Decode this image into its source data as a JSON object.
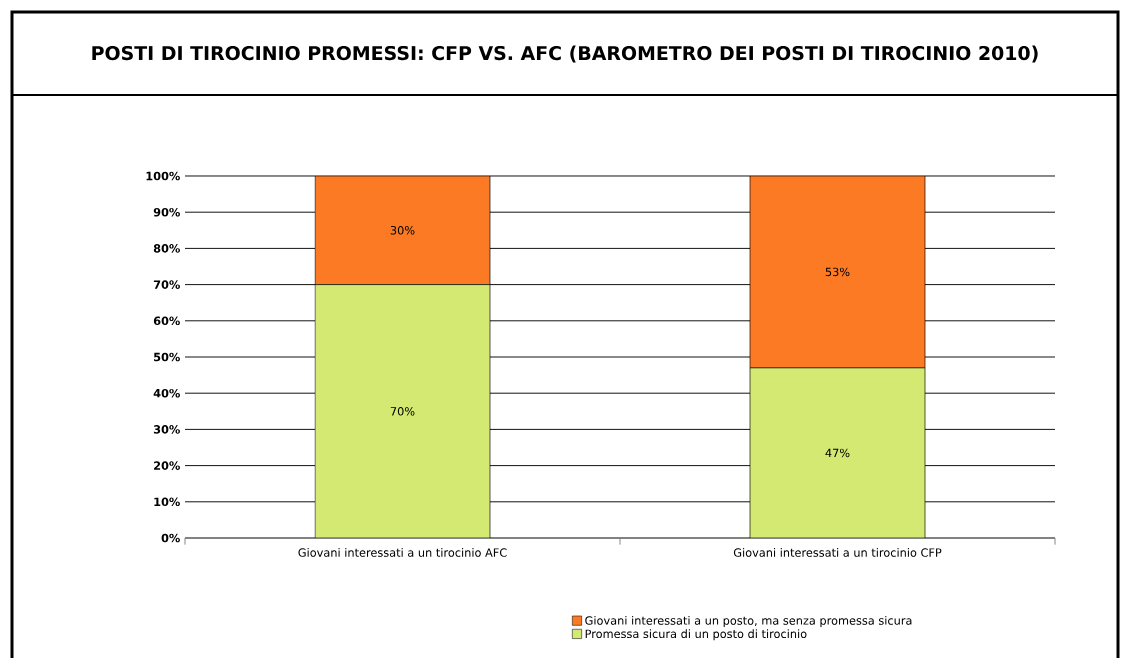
{
  "chart_data": {
    "type": "bar",
    "stacked": true,
    "title": "POSTI DI TIROCINIO PROMESSI: CFP VS. AFC (BAROMETRO DEI POSTI DI TIROCINIO 2010)",
    "categories": [
      "Giovani interessati a un tirocinio AFC",
      "Giovani interessati a un tirocinio CFP"
    ],
    "series": [
      {
        "name": "Promessa sicura di un posto di tirocinio",
        "color": "#d4e972",
        "values": [
          70,
          47
        ],
        "value_labels": [
          "70%",
          "47%"
        ]
      },
      {
        "name": "Giovani interessati a un posto, ma senza promessa sicura",
        "color": "#fd7a25",
        "values": [
          30,
          53
        ],
        "value_labels": [
          "30%",
          "53%"
        ]
      }
    ],
    "ylim": [
      0,
      100
    ],
    "yticks": [
      {
        "value": 0,
        "label": "0%"
      },
      {
        "value": 10,
        "label": "10%"
      },
      {
        "value": 20,
        "label": "20%"
      },
      {
        "value": 30,
        "label": "30%"
      },
      {
        "value": 40,
        "label": "40%"
      },
      {
        "value": 50,
        "label": "50%"
      },
      {
        "value": 60,
        "label": "60%"
      },
      {
        "value": 70,
        "label": "70%"
      },
      {
        "value": 80,
        "label": "80%"
      },
      {
        "value": 90,
        "label": "90%"
      },
      {
        "value": 100,
        "label": "100%"
      }
    ],
    "grid": "y",
    "legend": "bottom"
  }
}
